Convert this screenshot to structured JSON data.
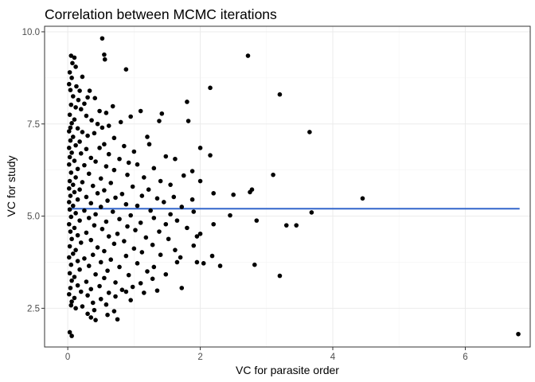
{
  "chart_data": {
    "type": "scatter",
    "title": "Correlation between MCMC iterations",
    "xlabel": "VC for parasite order",
    "ylabel": "VC for study",
    "xlim": [
      -0.35,
      6.98
    ],
    "ylim": [
      1.45,
      10.15
    ],
    "x_ticks": [
      0,
      2,
      4,
      6
    ],
    "x_tick_labels": [
      "0",
      "2",
      "4",
      "6"
    ],
    "y_ticks": [
      2.5,
      5.0,
      7.5,
      10.0
    ],
    "y_tick_labels": [
      "2.5",
      "5.0",
      "7.5",
      "10.0"
    ],
    "grid": true,
    "point_color": "#000000",
    "trend_line": {
      "x": [
        0.0,
        6.82
      ],
      "y": [
        5.2,
        5.2
      ],
      "color": "#3366cc"
    },
    "points": [
      [
        0.52,
        9.82
      ],
      [
        0.55,
        9.38
      ],
      [
        0.56,
        9.25
      ],
      [
        0.05,
        9.35
      ],
      [
        0.1,
        9.3
      ],
      [
        0.07,
        9.15
      ],
      [
        0.12,
        9.05
      ],
      [
        2.72,
        9.35
      ],
      [
        0.88,
        8.98
      ],
      [
        0.03,
        8.9
      ],
      [
        0.06,
        8.75
      ],
      [
        0.22,
        8.78
      ],
      [
        0.02,
        8.58
      ],
      [
        0.13,
        8.52
      ],
      [
        0.04,
        8.42
      ],
      [
        0.18,
        8.4
      ],
      [
        0.33,
        8.4
      ],
      [
        2.15,
        8.48
      ],
      [
        3.2,
        8.3
      ],
      [
        0.08,
        8.25
      ],
      [
        0.3,
        8.22
      ],
      [
        0.41,
        8.2
      ],
      [
        0.16,
        8.15
      ],
      [
        0.25,
        8.05
      ],
      [
        0.05,
        8.02
      ],
      [
        1.8,
        8.1
      ],
      [
        0.12,
        7.95
      ],
      [
        0.68,
        7.98
      ],
      [
        0.2,
        7.9
      ],
      [
        0.48,
        7.85
      ],
      [
        0.58,
        7.8
      ],
      [
        1.1,
        7.85
      ],
      [
        0.03,
        7.75
      ],
      [
        0.28,
        7.72
      ],
      [
        0.95,
        7.7
      ],
      [
        1.42,
        7.78
      ],
      [
        0.1,
        7.62
      ],
      [
        0.36,
        7.6
      ],
      [
        1.82,
        7.58
      ],
      [
        0.06,
        7.52
      ],
      [
        0.45,
        7.5
      ],
      [
        0.62,
        7.45
      ],
      [
        0.8,
        7.55
      ],
      [
        1.38,
        7.58
      ],
      [
        0.04,
        7.4
      ],
      [
        0.15,
        7.38
      ],
      [
        0.52,
        7.4
      ],
      [
        0.02,
        7.3
      ],
      [
        0.22,
        7.28
      ],
      [
        0.4,
        7.25
      ],
      [
        3.65,
        7.28
      ],
      [
        0.08,
        7.15
      ],
      [
        0.3,
        7.18
      ],
      [
        0.7,
        7.12
      ],
      [
        1.2,
        7.15
      ],
      [
        0.04,
        7.05
      ],
      [
        0.18,
        7.02
      ],
      [
        0.55,
        6.95
      ],
      [
        0.12,
        6.92
      ],
      [
        1.23,
        6.95
      ],
      [
        0.02,
        6.85
      ],
      [
        0.28,
        6.82
      ],
      [
        0.48,
        6.85
      ],
      [
        0.85,
        6.9
      ],
      [
        2.0,
        6.85
      ],
      [
        0.06,
        6.72
      ],
      [
        0.2,
        6.7
      ],
      [
        0.62,
        6.68
      ],
      [
        1.0,
        6.75
      ],
      [
        2.15,
        6.65
      ],
      [
        0.03,
        6.6
      ],
      [
        0.35,
        6.58
      ],
      [
        0.78,
        6.55
      ],
      [
        1.48,
        6.62
      ],
      [
        0.1,
        6.5
      ],
      [
        0.42,
        6.48
      ],
      [
        0.92,
        6.45
      ],
      [
        1.62,
        6.55
      ],
      [
        0.02,
        6.4
      ],
      [
        0.25,
        6.38
      ],
      [
        0.58,
        6.35
      ],
      [
        1.05,
        6.4
      ],
      [
        0.15,
        6.28
      ],
      [
        0.7,
        6.25
      ],
      [
        1.3,
        6.3
      ],
      [
        1.88,
        6.22
      ],
      [
        0.05,
        6.18
      ],
      [
        0.32,
        6.15
      ],
      [
        0.9,
        6.12
      ],
      [
        3.1,
        6.12
      ],
      [
        0.12,
        6.05
      ],
      [
        0.5,
        6.02
      ],
      [
        1.15,
        6.05
      ],
      [
        1.75,
        6.1
      ],
      [
        0.03,
        5.95
      ],
      [
        0.22,
        5.92
      ],
      [
        0.65,
        5.9
      ],
      [
        1.4,
        5.95
      ],
      [
        2.0,
        5.95
      ],
      [
        0.08,
        5.85
      ],
      [
        0.38,
        5.82
      ],
      [
        0.98,
        5.8
      ],
      [
        1.55,
        5.85
      ],
      [
        0.02,
        5.75
      ],
      [
        0.18,
        5.72
      ],
      [
        0.55,
        5.7
      ],
      [
        1.22,
        5.72
      ],
      [
        2.78,
        5.72
      ],
      [
        0.1,
        5.65
      ],
      [
        0.45,
        5.62
      ],
      [
        0.82,
        5.6
      ],
      [
        2.2,
        5.62
      ],
      [
        2.75,
        5.65
      ],
      [
        0.04,
        5.55
      ],
      [
        0.28,
        5.52
      ],
      [
        0.72,
        5.5
      ],
      [
        1.12,
        5.55
      ],
      [
        1.6,
        5.52
      ],
      [
        2.5,
        5.58
      ],
      [
        0.15,
        5.45
      ],
      [
        0.6,
        5.42
      ],
      [
        1.35,
        5.48
      ],
      [
        1.88,
        5.45
      ],
      [
        4.45,
        5.48
      ],
      [
        0.02,
        5.38
      ],
      [
        0.35,
        5.35
      ],
      [
        0.88,
        5.32
      ],
      [
        1.45,
        5.38
      ],
      [
        0.08,
        5.28
      ],
      [
        0.5,
        5.25
      ],
      [
        1.05,
        5.28
      ],
      [
        1.72,
        5.25
      ],
      [
        0.03,
        5.18
      ],
      [
        0.25,
        5.15
      ],
      [
        0.68,
        5.12
      ],
      [
        1.25,
        5.15
      ],
      [
        1.9,
        5.12
      ],
      [
        0.12,
        5.08
      ],
      [
        0.42,
        5.05
      ],
      [
        0.95,
        5.02
      ],
      [
        1.55,
        5.05
      ],
      [
        3.68,
        5.1
      ],
      [
        0.05,
        4.98
      ],
      [
        0.32,
        4.95
      ],
      [
        0.78,
        4.92
      ],
      [
        1.3,
        4.95
      ],
      [
        2.45,
        5.02
      ],
      [
        0.18,
        4.88
      ],
      [
        0.58,
        4.85
      ],
      [
        1.1,
        4.82
      ],
      [
        1.65,
        4.88
      ],
      [
        2.85,
        4.88
      ],
      [
        0.02,
        4.78
      ],
      [
        0.4,
        4.75
      ],
      [
        0.9,
        4.72
      ],
      [
        1.48,
        4.78
      ],
      [
        2.2,
        4.78
      ],
      [
        3.3,
        4.75
      ],
      [
        3.45,
        4.75
      ],
      [
        0.1,
        4.68
      ],
      [
        0.52,
        4.65
      ],
      [
        1.02,
        4.62
      ],
      [
        1.8,
        4.68
      ],
      [
        0.04,
        4.58
      ],
      [
        0.28,
        4.55
      ],
      [
        0.75,
        4.52
      ],
      [
        1.38,
        4.58
      ],
      [
        2.0,
        4.52
      ],
      [
        0.15,
        4.48
      ],
      [
        0.62,
        4.45
      ],
      [
        1.18,
        4.42
      ],
      [
        1.95,
        4.45
      ],
      [
        0.06,
        4.38
      ],
      [
        0.35,
        4.35
      ],
      [
        0.85,
        4.32
      ],
      [
        1.52,
        4.38
      ],
      [
        0.2,
        4.28
      ],
      [
        0.7,
        4.25
      ],
      [
        1.28,
        4.22
      ],
      [
        1.9,
        4.2
      ],
      [
        0.03,
        4.18
      ],
      [
        0.45,
        4.15
      ],
      [
        1.0,
        4.12
      ],
      [
        0.12,
        4.08
      ],
      [
        0.55,
        4.05
      ],
      [
        1.12,
        4.02
      ],
      [
        1.62,
        4.08
      ],
      [
        0.08,
        3.98
      ],
      [
        0.38,
        3.95
      ],
      [
        0.88,
        3.92
      ],
      [
        1.4,
        3.95
      ],
      [
        2.18,
        3.92
      ],
      [
        0.02,
        3.88
      ],
      [
        0.25,
        3.85
      ],
      [
        0.65,
        3.82
      ],
      [
        1.7,
        3.88
      ],
      [
        0.15,
        3.78
      ],
      [
        0.5,
        3.75
      ],
      [
        1.05,
        3.72
      ],
      [
        1.65,
        3.75
      ],
      [
        1.95,
        3.75
      ],
      [
        2.05,
        3.72
      ],
      [
        2.3,
        3.65
      ],
      [
        2.82,
        3.68
      ],
      [
        0.05,
        3.68
      ],
      [
        0.32,
        3.65
      ],
      [
        0.78,
        3.62
      ],
      [
        1.3,
        3.62
      ],
      [
        0.18,
        3.55
      ],
      [
        0.6,
        3.52
      ],
      [
        1.2,
        3.5
      ],
      [
        0.03,
        3.45
      ],
      [
        0.42,
        3.42
      ],
      [
        0.92,
        3.4
      ],
      [
        1.48,
        3.42
      ],
      [
        3.2,
        3.38
      ],
      [
        0.1,
        3.35
      ],
      [
        0.55,
        3.32
      ],
      [
        1.28,
        3.3
      ],
      [
        0.06,
        3.25
      ],
      [
        0.28,
        3.22
      ],
      [
        0.72,
        3.2
      ],
      [
        1.1,
        3.18
      ],
      [
        0.15,
        3.12
      ],
      [
        0.48,
        3.1
      ],
      [
        0.98,
        3.08
      ],
      [
        1.72,
        3.05
      ],
      [
        0.04,
        3.05
      ],
      [
        0.35,
        3.02
      ],
      [
        0.82,
        3.0
      ],
      [
        1.35,
        2.98
      ],
      [
        0.2,
        2.95
      ],
      [
        0.62,
        2.92
      ],
      [
        0.88,
        2.95
      ],
      [
        1.15,
        2.92
      ],
      [
        0.02,
        2.88
      ],
      [
        0.3,
        2.85
      ],
      [
        0.72,
        2.82
      ],
      [
        0.1,
        2.78
      ],
      [
        0.5,
        2.75
      ],
      [
        0.95,
        2.72
      ],
      [
        0.06,
        2.68
      ],
      [
        0.38,
        2.65
      ],
      [
        0.05,
        2.58
      ],
      [
        0.22,
        2.55
      ],
      [
        0.58,
        2.6
      ],
      [
        0.12,
        2.5
      ],
      [
        0.4,
        2.45
      ],
      [
        0.7,
        2.42
      ],
      [
        0.3,
        2.35
      ],
      [
        0.6,
        2.32
      ],
      [
        0.35,
        2.25
      ],
      [
        0.42,
        2.18
      ],
      [
        0.75,
        2.2
      ],
      [
        0.03,
        1.85
      ],
      [
        0.06,
        1.75
      ],
      [
        6.8,
        1.8
      ]
    ]
  }
}
